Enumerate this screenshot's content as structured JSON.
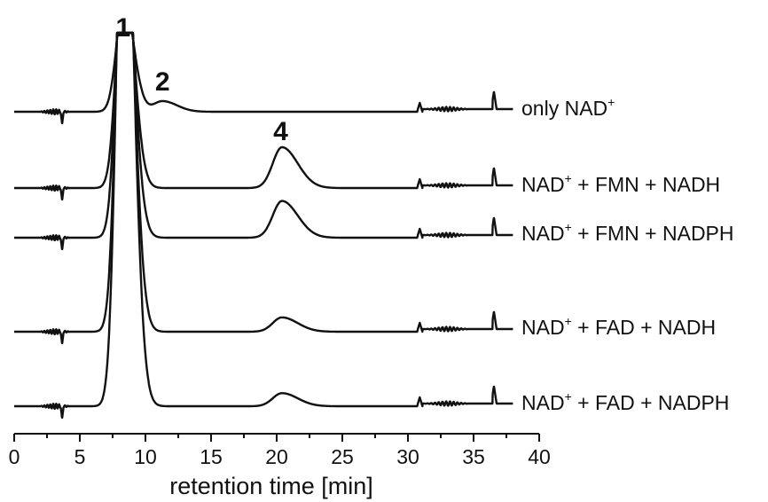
{
  "chart_data": {
    "type": "line",
    "title": "",
    "xlabel": "retention time [min]",
    "ylabel": "",
    "xlim": [
      0,
      40
    ],
    "x_ticks": [
      "0",
      "5",
      "10",
      "15",
      "20",
      "25",
      "30",
      "35",
      "40"
    ],
    "grid": false,
    "legend": "none",
    "colors": {
      "trace": "#111111"
    },
    "series": [
      {
        "name": "only NAD",
        "superscript": "+",
        "label_suffix": "",
        "peak4_height": 0.0
      },
      {
        "name": "NAD",
        "superscript": "+",
        "label_suffix": " + FMN + NADH",
        "peak4_height": 1.0
      },
      {
        "name": "NAD",
        "superscript": "+",
        "label_suffix": " + FMN + NADPH",
        "peak4_height": 0.9
      },
      {
        "name": "NAD",
        "superscript": "+",
        "label_suffix": " + FAD + NADH",
        "peak4_height": 0.35
      },
      {
        "name": "NAD",
        "superscript": "+",
        "label_suffix": " + FAD + NADPH",
        "peak4_height": 0.32
      }
    ],
    "peaks": [
      {
        "label": "1",
        "x": 8.3
      },
      {
        "label": "2",
        "x": 11.3
      },
      {
        "label": "4",
        "x": 20.3
      }
    ]
  }
}
